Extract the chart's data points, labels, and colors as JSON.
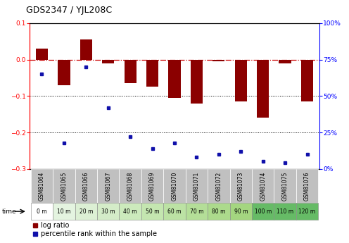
{
  "title": "GDS2347 / YJL208C",
  "samples": [
    "GSM81064",
    "GSM81065",
    "GSM81066",
    "GSM81067",
    "GSM81068",
    "GSM81069",
    "GSM81070",
    "GSM81071",
    "GSM81072",
    "GSM81073",
    "GSM81074",
    "GSM81075",
    "GSM81076"
  ],
  "time_labels": [
    "0 m",
    "10 m",
    "20 m",
    "30 m",
    "40 m",
    "50 m",
    "60 m",
    "70 m",
    "80 m",
    "90 m",
    "100 m",
    "110 m",
    "120 m"
  ],
  "log_ratio": [
    0.03,
    -0.07,
    0.055,
    -0.01,
    -0.065,
    -0.075,
    -0.105,
    -0.12,
    -0.005,
    -0.115,
    -0.16,
    -0.01,
    -0.115
  ],
  "percentile": [
    65,
    18,
    70,
    42,
    22,
    14,
    18,
    8,
    10,
    12,
    5,
    4,
    10
  ],
  "ylim_left": [
    -0.3,
    0.1
  ],
  "ylim_right": [
    0,
    100
  ],
  "bar_color": "#8B0000",
  "dot_color": "#1010AA",
  "dashed_line_color": "#CC0000",
  "bg_color_gray": "#C0C0C0",
  "time_colors": [
    "#FFFFFF",
    "#E4F4E0",
    "#DCF0D4",
    "#D4ECC8",
    "#CCEABC",
    "#C4E6B0",
    "#BCE2A4",
    "#B4DE98",
    "#ACDA8C",
    "#A4D680",
    "#66BB66",
    "#66BB66",
    "#66BB66"
  ],
  "title_fontsize": 9,
  "tick_fontsize": 6.5,
  "legend_fontsize": 7,
  "sample_label_fontsize": 5.5,
  "time_label_fontsize": 5.5
}
